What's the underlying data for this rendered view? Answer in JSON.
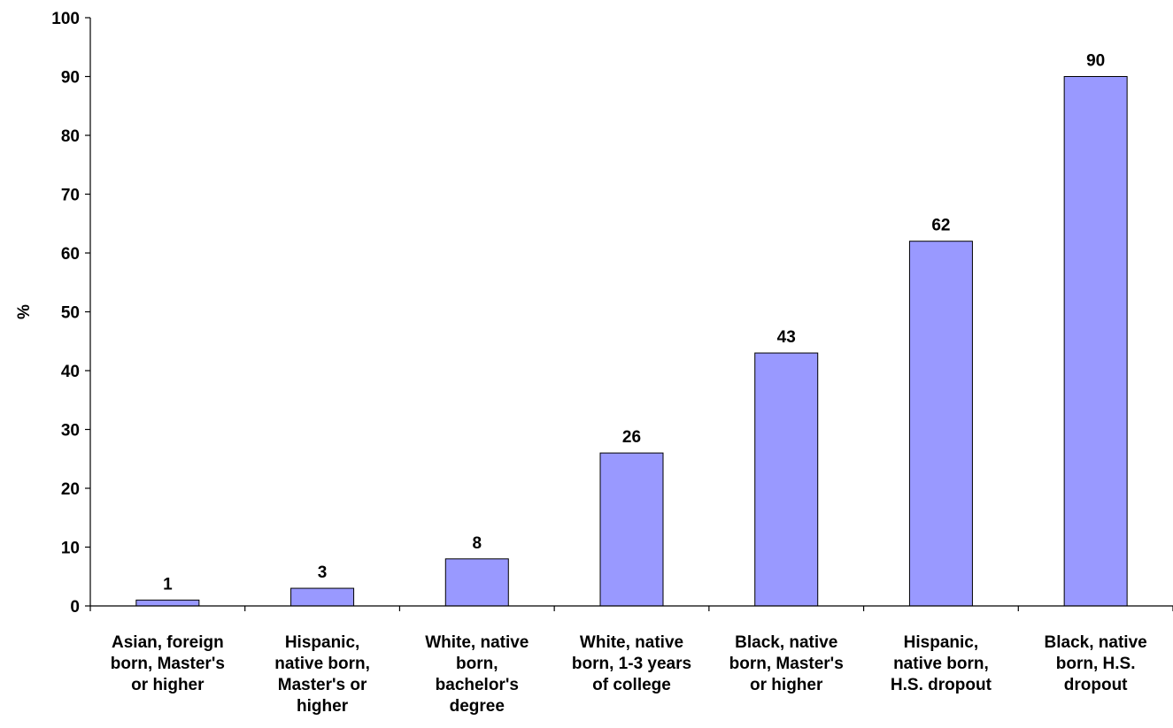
{
  "chart_data": {
    "type": "bar",
    "title": "",
    "xlabel": "",
    "ylabel": "%",
    "ylim": [
      0,
      100
    ],
    "yticks": [
      0,
      10,
      20,
      30,
      40,
      50,
      60,
      70,
      80,
      90,
      100
    ],
    "grid": false,
    "legend": "none",
    "categories": [
      [
        "Asian, foreign",
        "born, Master's",
        "or higher"
      ],
      [
        "Hispanic,",
        "native born,",
        "Master's or",
        "higher"
      ],
      [
        "White, native",
        "born,",
        "bachelor's",
        "degree"
      ],
      [
        "White, native",
        "born, 1-3 years",
        "of college"
      ],
      [
        "Black, native",
        "born, Master's",
        "or higher"
      ],
      [
        "Hispanic,",
        "native born,",
        "H.S. dropout"
      ],
      [
        "Black, native",
        "born, H.S.",
        "dropout"
      ]
    ],
    "values": [
      1,
      3,
      8,
      26,
      43,
      62,
      90
    ],
    "data_labels": [
      "1",
      "3",
      "8",
      "26",
      "43",
      "62",
      "90"
    ],
    "colors": {
      "bar_fill": "#9999ff",
      "bar_stroke": "#000000",
      "axis": "#000000"
    }
  }
}
